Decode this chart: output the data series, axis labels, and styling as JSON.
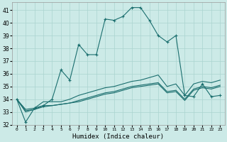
{
  "xlabel": "Humidex (Indice chaleur)",
  "background_color": "#cceae7",
  "grid_color": "#aad4d0",
  "line_color": "#1a6e6e",
  "xlim": [
    -0.5,
    23.5
  ],
  "ylim": [
    32,
    41.6
  ],
  "yticks": [
    32,
    33,
    34,
    35,
    36,
    37,
    38,
    39,
    40,
    41
  ],
  "xticks": [
    0,
    1,
    2,
    3,
    4,
    5,
    6,
    7,
    8,
    9,
    10,
    11,
    12,
    13,
    14,
    15,
    16,
    17,
    18,
    19,
    20,
    21,
    22,
    23
  ],
  "lines": [
    {
      "x": [
        0,
        1,
        2,
        3,
        4,
        5,
        6,
        7,
        8,
        9,
        10,
        11,
        12,
        13,
        14,
        15,
        16,
        17,
        18,
        19,
        20,
        21,
        22,
        23
      ],
      "y": [
        34.0,
        32.2,
        33.3,
        33.5,
        34.0,
        36.3,
        35.5,
        38.3,
        37.5,
        37.5,
        40.3,
        40.2,
        40.5,
        41.2,
        41.2,
        40.2,
        39.0,
        38.5,
        39.0,
        34.3,
        34.2,
        35.2,
        34.2,
        34.3
      ],
      "with_markers": true
    },
    {
      "x": [
        0,
        1,
        2,
        3,
        4,
        5,
        6,
        7,
        8,
        9,
        10,
        11,
        12,
        13,
        14,
        15,
        16,
        17,
        18,
        19,
        20,
        21,
        22,
        23
      ],
      "y": [
        34.0,
        33.2,
        33.3,
        33.8,
        33.8,
        33.8,
        34.0,
        34.3,
        34.5,
        34.7,
        34.9,
        35.0,
        35.2,
        35.4,
        35.5,
        35.7,
        35.9,
        35.0,
        35.2,
        34.3,
        35.2,
        35.4,
        35.3,
        35.5
      ],
      "with_markers": false
    },
    {
      "x": [
        0,
        1,
        2,
        3,
        4,
        5,
        6,
        7,
        8,
        9,
        10,
        11,
        12,
        13,
        14,
        15,
        16,
        17,
        18,
        19,
        20,
        21,
        22,
        23
      ],
      "y": [
        34.0,
        33.0,
        33.2,
        33.5,
        33.5,
        33.6,
        33.7,
        33.9,
        34.1,
        34.3,
        34.5,
        34.6,
        34.8,
        35.0,
        35.1,
        35.2,
        35.3,
        34.6,
        34.7,
        34.0,
        34.8,
        35.0,
        34.9,
        35.1
      ],
      "with_markers": false
    },
    {
      "x": [
        0,
        1,
        2,
        3,
        4,
        5,
        6,
        7,
        8,
        9,
        10,
        11,
        12,
        13,
        14,
        15,
        16,
        17,
        18,
        19,
        20,
        21,
        22,
        23
      ],
      "y": [
        34.0,
        33.1,
        33.2,
        33.4,
        33.5,
        33.6,
        33.7,
        33.8,
        34.0,
        34.2,
        34.4,
        34.5,
        34.7,
        34.9,
        35.0,
        35.1,
        35.2,
        34.5,
        34.6,
        33.9,
        34.7,
        34.9,
        34.8,
        35.0
      ],
      "with_markers": false
    }
  ]
}
